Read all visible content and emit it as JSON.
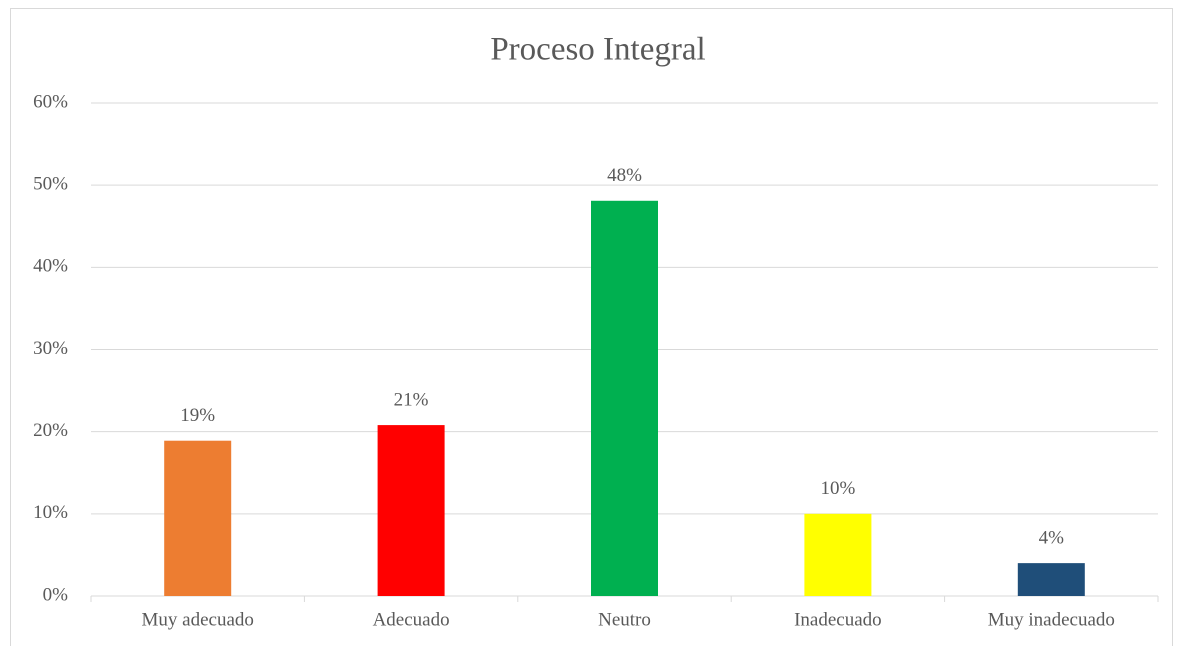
{
  "chart_data": {
    "type": "bar",
    "title": "Proceso Integral",
    "categories": [
      "Muy adecuado",
      "Adecuado",
      "Neutro",
      "Inadecuado",
      "Muy inadecuado"
    ],
    "values": [
      18.9,
      20.8,
      48.1,
      10.0,
      4.0
    ],
    "value_labels": [
      "19%",
      "21%",
      "48%",
      "10%",
      "4%"
    ],
    "colors": [
      "#ed7d31",
      "#ff0000",
      "#00b050",
      "#ffff00",
      "#1f4e79"
    ],
    "ylim": [
      0,
      60
    ],
    "yticks": [
      {
        "value": 0,
        "label": "0%"
      },
      {
        "value": 10,
        "label": "10%"
      },
      {
        "value": 20,
        "label": "20%"
      },
      {
        "value": 30,
        "label": "30%"
      },
      {
        "value": 40,
        "label": "40%"
      },
      {
        "value": 50,
        "label": "50%"
      },
      {
        "value": 60,
        "label": "60%"
      }
    ],
    "grid": true
  }
}
